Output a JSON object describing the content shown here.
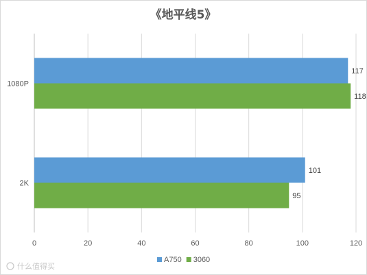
{
  "watermark": "什么值得买",
  "chart_data": {
    "type": "bar",
    "orientation": "horizontal",
    "title": "《地平线5》",
    "categories": [
      "1080P",
      "2K"
    ],
    "series": [
      {
        "name": "A750",
        "color": "#5b9bd5",
        "values": [
          117,
          101
        ]
      },
      {
        "name": "3060",
        "color": "#70ad47",
        "values": [
          118,
          95
        ]
      }
    ],
    "xlim": [
      0,
      120
    ],
    "xticks": [
      0,
      20,
      40,
      60,
      80,
      100,
      120
    ],
    "grid": true,
    "legend": "bottom"
  }
}
